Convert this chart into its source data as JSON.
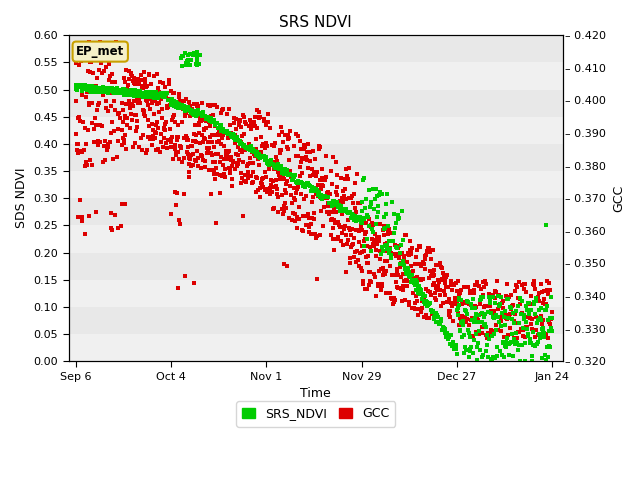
{
  "title": "SRS NDVI",
  "ylabel_left": "SDS NDVI",
  "ylabel_right": "GCC",
  "xlabel": "Time",
  "ylim_left": [
    0.0,
    0.6
  ],
  "ylim_right": [
    0.32,
    0.42
  ],
  "bg_color": "#e8e8e8",
  "bg_color_light": "#f0f0f0",
  "annotation_text": "EP_met",
  "annotation_facecolor": "#f5f0c8",
  "annotation_edgecolor": "#c8a000",
  "legend_colors_ndvi": "#00cc00",
  "legend_colors_gcc": "#dd0000",
  "xtick_labels": [
    "Sep 6",
    "Oct 4",
    "Nov 1",
    "Nov 29",
    "Dec 27",
    "Jan 24"
  ],
  "xtick_positions": [
    0,
    28,
    56,
    84,
    112,
    140
  ],
  "yticks_left": [
    0.0,
    0.05,
    0.1,
    0.15,
    0.2,
    0.25,
    0.3,
    0.35,
    0.4,
    0.45,
    0.5,
    0.55,
    0.6
  ],
  "yticks_right": [
    0.32,
    0.33,
    0.34,
    0.35,
    0.36,
    0.37,
    0.38,
    0.39,
    0.4,
    0.41,
    0.42
  ],
  "xlim": [
    -2,
    143
  ]
}
